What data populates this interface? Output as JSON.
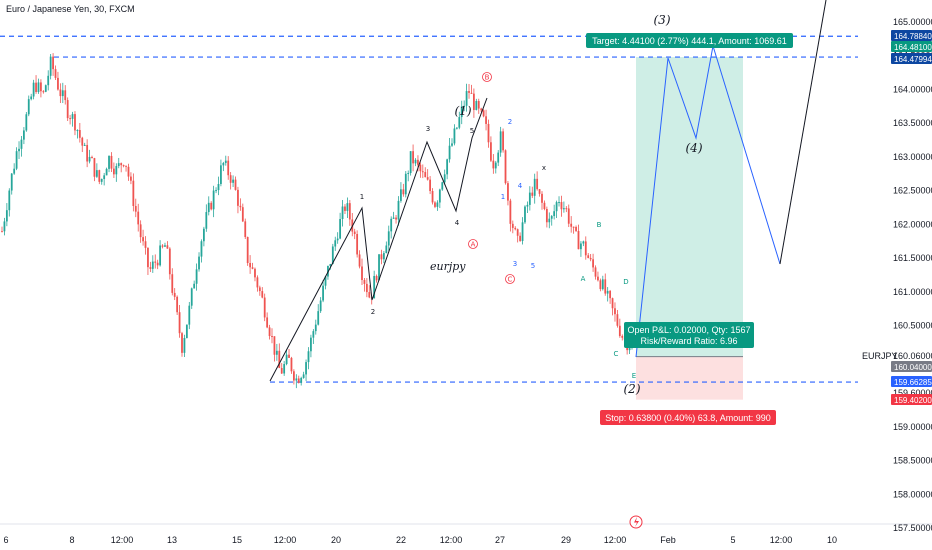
{
  "header": {
    "title": "Euro / Japanese Yen, 30, FXCM"
  },
  "symbol_label": "EURJPY",
  "chart_data": {
    "type": "candlestick",
    "title": "Euro / Japanese Yen, 30, FXCM",
    "xlabel": "",
    "ylabel": "",
    "ylim": [
      157.5,
      165.0
    ],
    "y_ticks": [
      "165.00000",
      "164.50000",
      "164.00000",
      "163.50000",
      "163.00000",
      "162.50000",
      "162.00000",
      "161.50000",
      "161.00000",
      "160.50000",
      "160.06000",
      "159.00000",
      "158.50000",
      "158.00000",
      "157.50000"
    ],
    "x_ticks": [
      "6",
      "8",
      "12:00",
      "13",
      "15",
      "12:00",
      "20",
      "22",
      "12:00",
      "27",
      "29",
      "12:00",
      "Feb",
      "5",
      "12:00",
      "10"
    ],
    "price_badges": [
      {
        "text": "164.78840",
        "color": "#0d47a1"
      },
      {
        "text": "164.48100",
        "color": "#089981"
      },
      {
        "text": "164.47994",
        "color": "#0d47a1"
      },
      {
        "text": "160.04000",
        "color": "#787b86"
      },
      {
        "text": "159.66285",
        "color": "#2962ff"
      },
      {
        "text": "159.40200",
        "color": "#f23645"
      }
    ],
    "hidden_tick_fragment": "159.60000",
    "horizontal_levels": [
      164.7884,
      164.47994,
      159.66285
    ],
    "price_path": [
      161.9,
      162.6,
      163.2,
      163.6,
      164.1,
      163.9,
      164.4,
      164.0,
      163.7,
      163.5,
      163.1,
      162.9,
      162.6,
      163.0,
      162.8,
      163.0,
      162.4,
      161.8,
      161.3,
      161.5,
      161.7,
      160.9,
      160.2,
      160.8,
      161.6,
      162.1,
      162.5,
      162.9,
      162.7,
      162.3,
      161.5,
      161.2,
      160.8,
      160.3,
      159.8,
      160.0,
      159.7,
      159.9,
      160.4,
      160.9,
      161.4,
      161.9,
      162.3,
      161.9,
      161.3,
      160.9,
      161.4,
      161.8,
      162.1,
      162.5,
      163.0,
      162.8,
      162.6,
      162.3,
      162.8,
      163.2,
      163.6,
      164.0,
      163.7,
      163.5,
      162.9,
      163.3,
      162.2,
      161.7,
      162.2,
      162.6,
      162.3,
      162.0,
      162.4,
      162.2,
      161.8,
      161.7,
      161.4,
      161.2,
      160.9,
      160.6,
      160.3,
      160.2
    ],
    "wave_lines": [
      {
        "color": "#131722",
        "points": [
          [
            270,
            381
          ],
          [
            362,
            208
          ],
          [
            372,
            300
          ],
          [
            427,
            142
          ],
          [
            456,
            211
          ],
          [
            472,
            138
          ],
          [
            487,
            98
          ]
        ]
      },
      {
        "color": "#2962ff",
        "points": [
          [
            636,
            357
          ],
          [
            668,
            58
          ],
          [
            696,
            138
          ],
          [
            713,
            46
          ],
          [
            780,
            264
          ]
        ]
      },
      {
        "color": "#131722",
        "points": [
          [
            780,
            264
          ],
          [
            826,
            0
          ]
        ]
      }
    ],
    "wave_labels": [
      {
        "text": "1",
        "color": "#131722"
      },
      {
        "text": "2",
        "color": "#131722"
      },
      {
        "text": "3",
        "color": "#131722"
      },
      {
        "text": "4",
        "color": "#131722"
      },
      {
        "text": "5",
        "color": "#131722"
      },
      {
        "text": "2",
        "color": "#2962ff"
      },
      {
        "text": "1",
        "color": "#2962ff"
      },
      {
        "text": "4",
        "color": "#2962ff"
      },
      {
        "text": "3",
        "color": "#2962ff"
      },
      {
        "text": "5",
        "color": "#2962ff"
      },
      {
        "text": "x",
        "color": "#131722"
      },
      {
        "text": "B",
        "color": "#089981"
      },
      {
        "text": "A",
        "color": "#089981"
      },
      {
        "text": "D",
        "color": "#089981"
      },
      {
        "text": "C",
        "color": "#089981"
      },
      {
        "text": "E",
        "color": "#089981"
      }
    ],
    "circle_labels": [
      "B",
      "A",
      "C"
    ],
    "big_labels": [
      "(1)",
      "(2)",
      "(3)",
      "(4)"
    ],
    "annotation": "eurjpy",
    "position_tool": {
      "entry": 160.04,
      "target": 164.481,
      "stop": 159.402,
      "target_text": "Target: 4.44100 (2.77%) 444.1, Amount: 1069.61",
      "open_pnl_text": "Open P&L: 0.02000, Qty: 1567",
      "risk_reward_text": "Risk/Reward Ratio: 6.96",
      "stop_text": "Stop: 0.63800 (0.40%) 63.8, Amount: 990"
    },
    "colors": {
      "up": "#26a69a",
      "down": "#ef5350",
      "target_zone": "#cfeee6",
      "stop_zone": "#fde0e0",
      "target_label": "#089981",
      "stop_label": "#f23645",
      "level_line": "#2962ff"
    }
  }
}
